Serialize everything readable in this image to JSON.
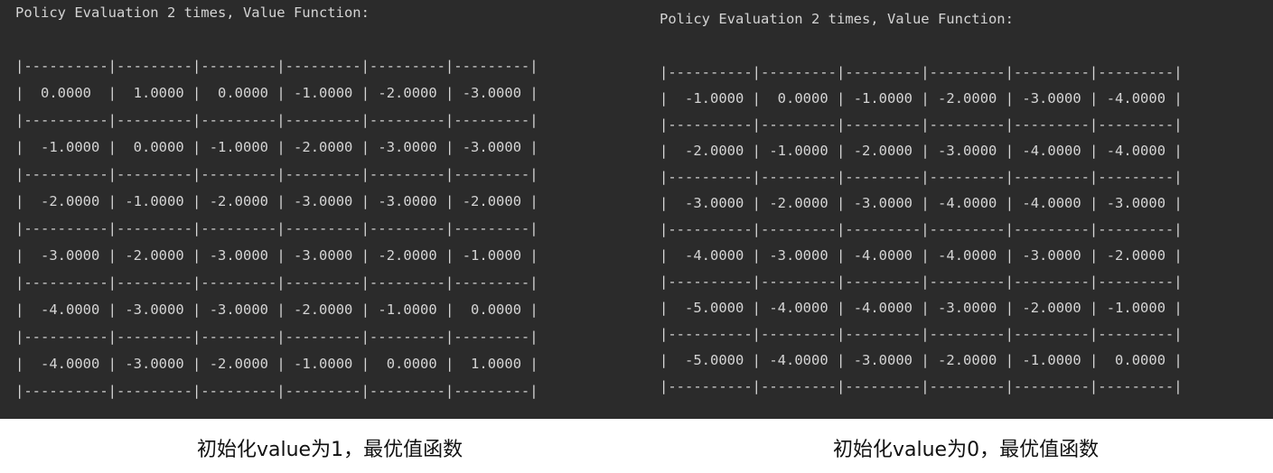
{
  "left": {
    "title": "Policy Evaluation 2 times, Value Function:",
    "rows": [
      [
        "0.0000",
        "1.0000",
        "0.0000",
        "-1.0000",
        "-2.0000",
        "-3.0000"
      ],
      [
        "-1.0000",
        "0.0000",
        "-1.0000",
        "-2.0000",
        "-3.0000",
        "-3.0000"
      ],
      [
        "-2.0000",
        "-1.0000",
        "-2.0000",
        "-3.0000",
        "-3.0000",
        "-2.0000"
      ],
      [
        "-3.0000",
        "-2.0000",
        "-3.0000",
        "-3.0000",
        "-2.0000",
        "-1.0000"
      ],
      [
        "-4.0000",
        "-3.0000",
        "-3.0000",
        "-2.0000",
        "-1.0000",
        "0.0000"
      ],
      [
        "-4.0000",
        "-3.0000",
        "-2.0000",
        "-1.0000",
        "0.0000",
        "1.0000"
      ]
    ],
    "caption": "初始化value为1，最优值函数"
  },
  "right": {
    "title": "Policy Evaluation 2 times, Value Function:",
    "rows": [
      [
        "-1.0000",
        "0.0000",
        "-1.0000",
        "-2.0000",
        "-3.0000",
        "-4.0000"
      ],
      [
        "-2.0000",
        "-1.0000",
        "-2.0000",
        "-3.0000",
        "-4.0000",
        "-4.0000"
      ],
      [
        "-3.0000",
        "-2.0000",
        "-3.0000",
        "-4.0000",
        "-4.0000",
        "-3.0000"
      ],
      [
        "-4.0000",
        "-3.0000",
        "-4.0000",
        "-4.0000",
        "-3.0000",
        "-2.0000"
      ],
      [
        "-5.0000",
        "-4.0000",
        "-4.0000",
        "-3.0000",
        "-2.0000",
        "-1.0000"
      ],
      [
        "-5.0000",
        "-4.0000",
        "-3.0000",
        "-2.0000",
        "-1.0000",
        "0.0000"
      ]
    ],
    "caption": "初始化value为0，最优值函数"
  }
}
